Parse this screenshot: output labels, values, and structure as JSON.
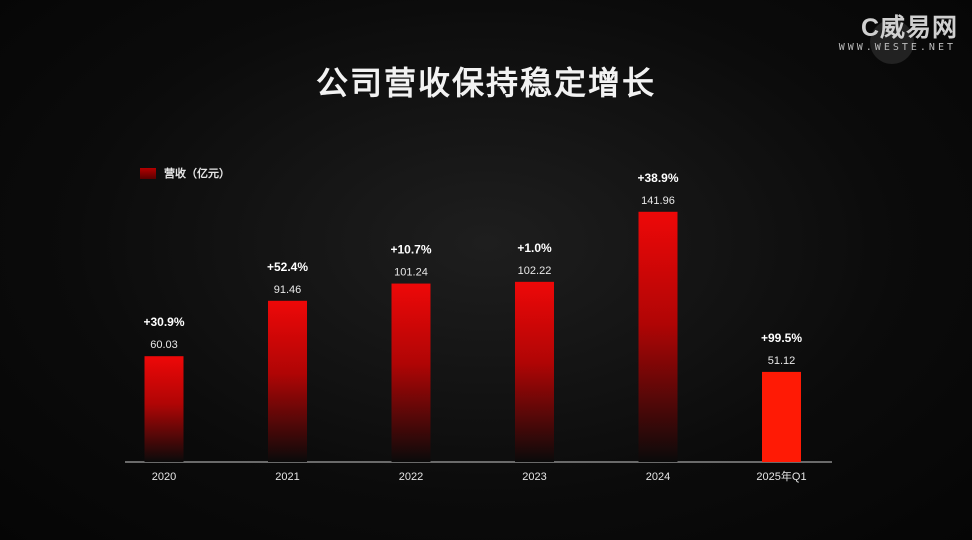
{
  "title": "公司营收保持稳定增长",
  "watermark": {
    "brand": "C威易网",
    "url": "WWW.WESTE.NET"
  },
  "colors": {
    "bar_top": "#ee0808",
    "bar_bottom": "#0a0a0a",
    "bar_highlight": "#ff1a05",
    "axis": "#8a8a8a",
    "text": "#ffffff"
  },
  "chart_data": {
    "type": "bar",
    "categories": [
      "2020",
      "2021",
      "2022",
      "2023",
      "2024",
      "2025年Q1"
    ],
    "series": [
      {
        "name": "营收（亿元）",
        "values": [
          60.03,
          91.46,
          101.24,
          102.22,
          141.96,
          51.12
        ]
      }
    ],
    "value_labels": [
      "60.03",
      "91.46",
      "101.24",
      "102.22",
      "141.96",
      "51.12"
    ],
    "growth_labels": [
      "+30.9%",
      "+52.4%",
      "+10.7%",
      "+1.0%",
      "+38.9%",
      "+99.5%"
    ],
    "xlabel": "",
    "ylabel": "",
    "ylim": [
      0,
      160
    ],
    "grid": false,
    "legend_position": "top-left"
  }
}
